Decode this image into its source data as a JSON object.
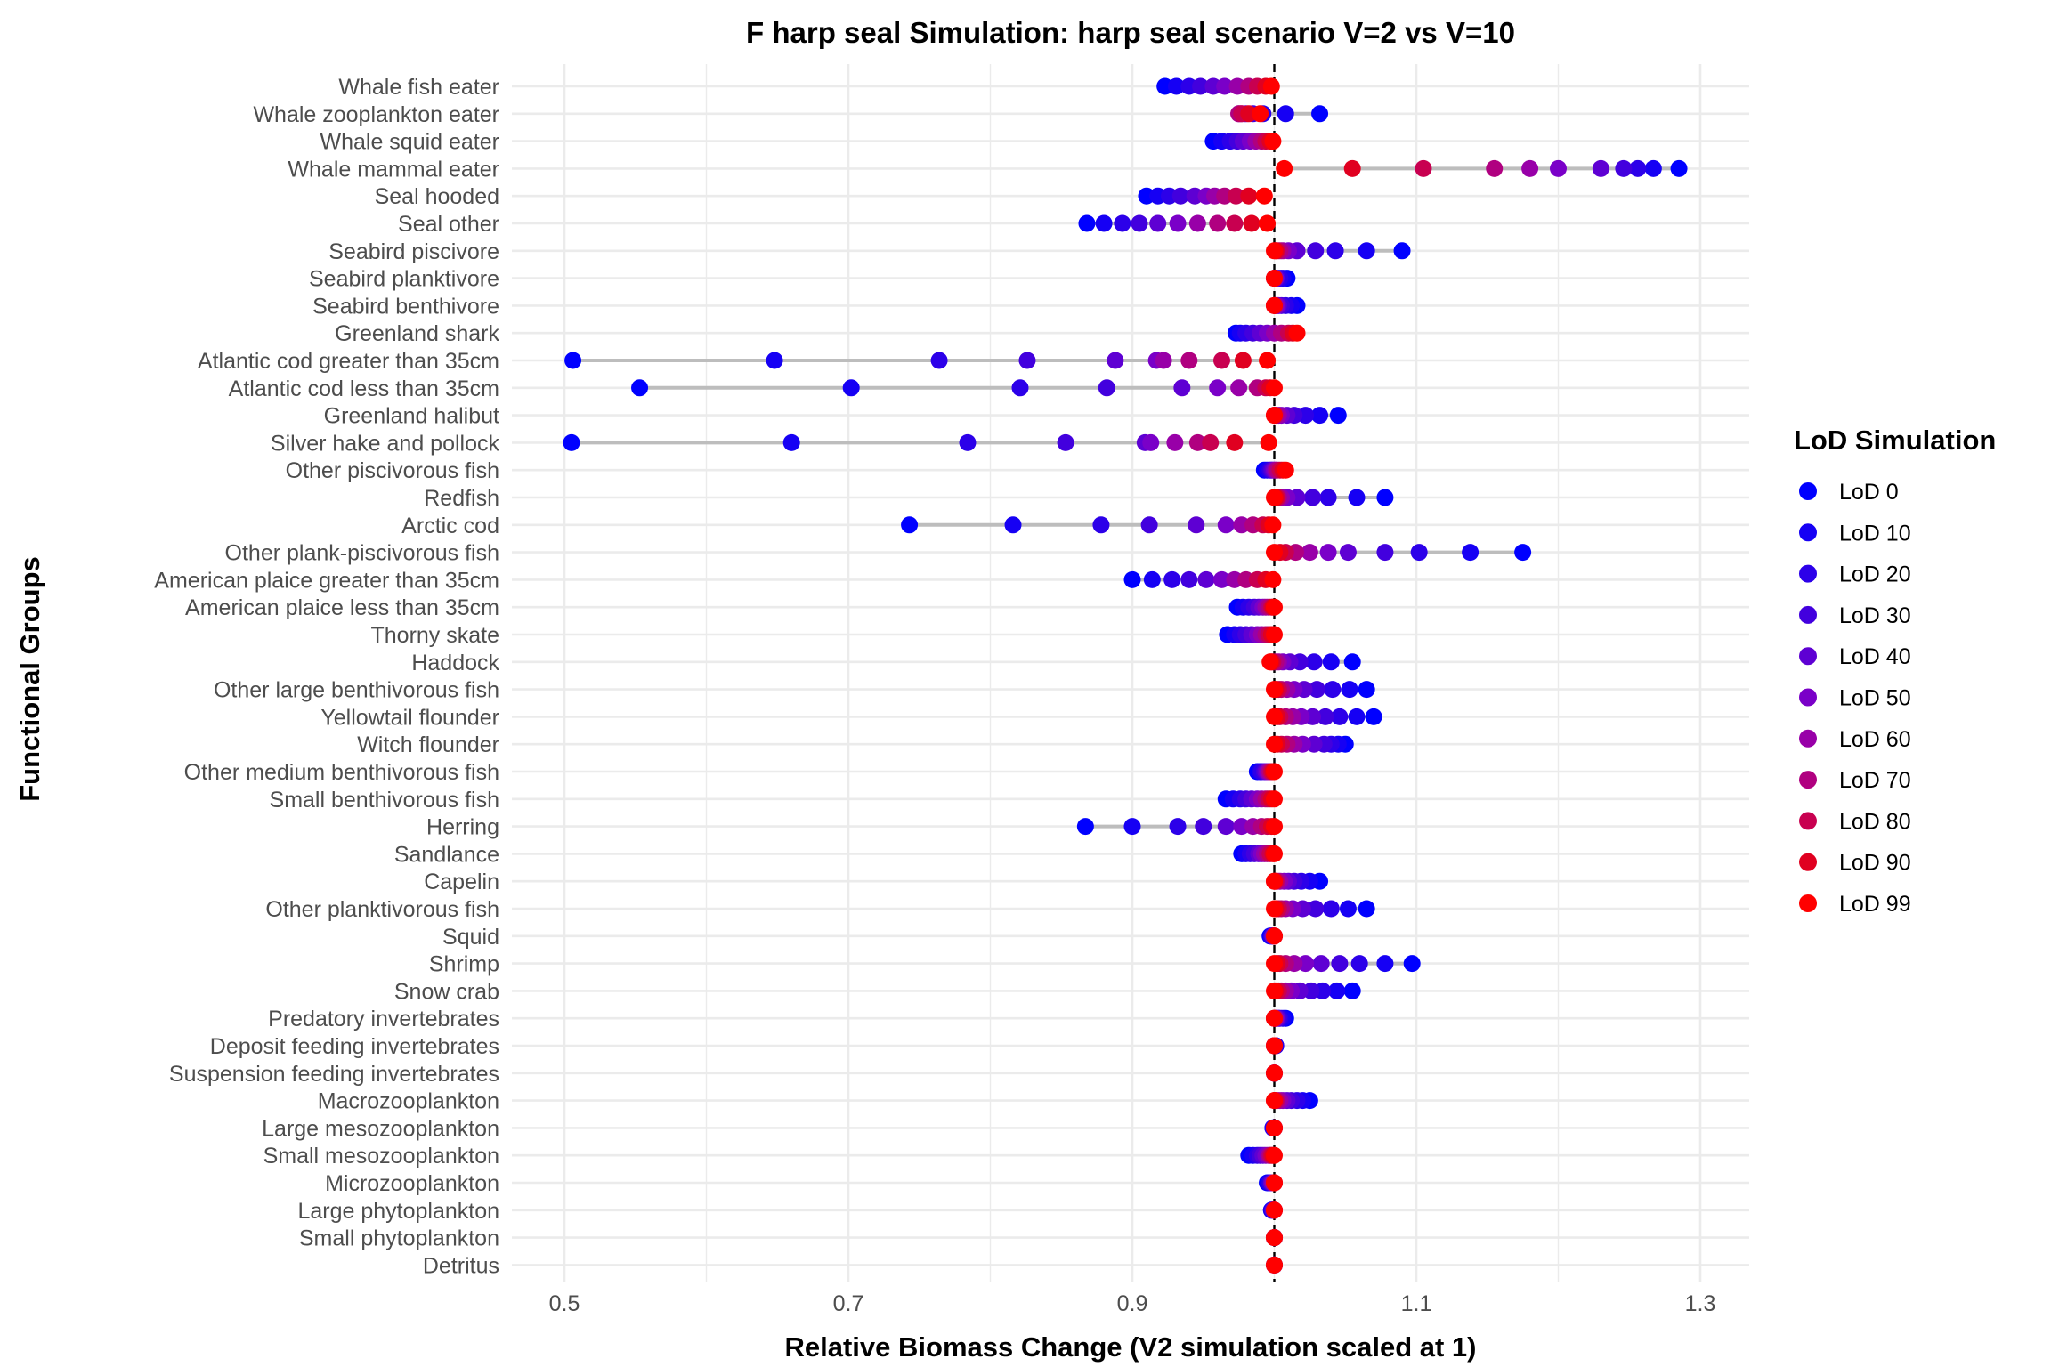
{
  "chart_data": {
    "type": "scatter",
    "title": "F harp seal Simulation: harp seal scenario V=2 vs V=10",
    "xlabel": "Relative Biomass Change (V2 simulation scaled at 1)",
    "ylabel": "Functional Groups",
    "xlim": [
      0.48,
      1.32
    ],
    "xticks": [
      0.5,
      0.7,
      0.9,
      1.1,
      1.3
    ],
    "xtick_labels": [
      "0.5",
      "0.7",
      "0.9",
      "1.1",
      "1.3"
    ],
    "reference_line_x": 1.0,
    "grid": true,
    "legend": {
      "title": "LoD Simulation",
      "position": "right",
      "entries": [
        "LoD 0",
        "LoD 10",
        "LoD 20",
        "LoD 30",
        "LoD 40",
        "LoD 50",
        "LoD 60",
        "LoD 70",
        "LoD 80",
        "LoD 90",
        "LoD 99"
      ],
      "colors": [
        "#0000ff",
        "#1600f4",
        "#2c00e9",
        "#4200de",
        "#5e00d3",
        "#7a00c8",
        "#9800a8",
        "#b00080",
        "#c80050",
        "#e00020",
        "#ff0000"
      ]
    },
    "groups": [
      {
        "name": "Whale fish eater",
        "values": [
          0.923,
          0.931,
          0.94,
          0.948,
          0.957,
          0.965,
          0.974,
          0.982,
          0.988,
          0.994,
          0.998
        ]
      },
      {
        "name": "Whale zooplankton eater",
        "values": [
          1.032,
          1.008,
          0.992,
          0.985,
          0.98,
          0.977,
          0.975,
          0.975,
          0.977,
          0.982,
          0.99
        ]
      },
      {
        "name": "Whale squid eater",
        "values": [
          0.957,
          0.963,
          0.969,
          0.974,
          0.978,
          0.983,
          0.987,
          0.991,
          0.994,
          0.997,
          0.999
        ]
      },
      {
        "name": "Whale mammal eater",
        "values": [
          1.285,
          1.267,
          1.256,
          1.246,
          1.23,
          1.2,
          1.18,
          1.155,
          1.105,
          1.055,
          1.007
        ]
      },
      {
        "name": "Seal hooded",
        "values": [
          0.91,
          0.918,
          0.926,
          0.934,
          0.944,
          0.952,
          0.958,
          0.965,
          0.973,
          0.982,
          0.993
        ]
      },
      {
        "name": "Seal other",
        "values": [
          0.868,
          0.88,
          0.893,
          0.905,
          0.918,
          0.932,
          0.946,
          0.96,
          0.972,
          0.984,
          0.995
        ]
      },
      {
        "name": "Seabird piscivore",
        "values": [
          1.09,
          1.065,
          1.043,
          1.029,
          1.016,
          1.01,
          1.006,
          1.004,
          1.002,
          1.001,
          1.0
        ]
      },
      {
        "name": "Seabird planktivore",
        "values": [
          1.009,
          1.006,
          1.004,
          1.002,
          1.001,
          1.001,
          1.0,
          1.0,
          1.0,
          1.0,
          1.0
        ]
      },
      {
        "name": "Seabird benthivore",
        "values": [
          1.016,
          1.012,
          1.008,
          1.005,
          1.003,
          1.002,
          1.001,
          1.0,
          1.0,
          1.0,
          1.0
        ]
      },
      {
        "name": "Greenland shark",
        "values": [
          0.973,
          0.976,
          0.98,
          0.985,
          0.99,
          0.995,
          1.0,
          1.005,
          1.01,
          1.013,
          1.016
        ]
      },
      {
        "name": "Atlantic cod greater than 35cm",
        "values": [
          0.506,
          0.648,
          0.764,
          0.826,
          0.888,
          0.917,
          0.922,
          0.94,
          0.963,
          0.978,
          0.995
        ]
      },
      {
        "name": "Atlantic cod less than 35cm",
        "values": [
          0.553,
          0.702,
          0.821,
          0.882,
          0.935,
          0.96,
          0.975,
          0.988,
          0.994,
          0.997,
          1.0
        ]
      },
      {
        "name": "Greenland halibut",
        "values": [
          1.045,
          1.032,
          1.022,
          1.014,
          1.009,
          1.005,
          1.003,
          1.001,
          1.0,
          1.0,
          1.0
        ]
      },
      {
        "name": "Silver hake and pollock",
        "values": [
          0.505,
          0.66,
          0.784,
          0.853,
          0.909,
          0.913,
          0.93,
          0.946,
          0.955,
          0.972,
          0.996
        ]
      },
      {
        "name": "Other piscivorous fish",
        "values": [
          0.993,
          0.995,
          0.997,
          0.998,
          0.999,
          1.0,
          1.001,
          1.002,
          1.004,
          1.006,
          1.008
        ]
      },
      {
        "name": "Redfish",
        "values": [
          1.078,
          1.058,
          1.038,
          1.027,
          1.016,
          1.009,
          1.005,
          1.003,
          1.002,
          1.001,
          1.0
        ]
      },
      {
        "name": "Arctic cod",
        "values": [
          0.743,
          0.816,
          0.878,
          0.912,
          0.945,
          0.966,
          0.977,
          0.985,
          0.992,
          0.996,
          0.999
        ]
      },
      {
        "name": "Other plank-piscivorous fish",
        "values": [
          1.175,
          1.138,
          1.102,
          1.078,
          1.052,
          1.038,
          1.025,
          1.015,
          1.008,
          1.004,
          1.0
        ]
      },
      {
        "name": "American plaice greater than 35cm",
        "values": [
          0.9,
          0.914,
          0.928,
          0.94,
          0.952,
          0.963,
          0.972,
          0.98,
          0.988,
          0.994,
          0.999
        ]
      },
      {
        "name": "American plaice less than 35cm",
        "values": [
          0.974,
          0.978,
          0.982,
          0.986,
          0.989,
          0.992,
          0.994,
          0.996,
          0.998,
          0.999,
          1.0
        ]
      },
      {
        "name": "Thorny skate",
        "values": [
          0.967,
          0.972,
          0.976,
          0.98,
          0.984,
          0.988,
          0.991,
          0.994,
          0.996,
          0.998,
          1.0
        ]
      },
      {
        "name": "Haddock",
        "values": [
          1.055,
          1.04,
          1.028,
          1.018,
          1.011,
          1.006,
          1.003,
          1.001,
          0.999,
          0.998,
          0.997
        ]
      },
      {
        "name": "Other large benthivorous fish",
        "values": [
          1.065,
          1.053,
          1.041,
          1.03,
          1.021,
          1.014,
          1.009,
          1.005,
          1.003,
          1.001,
          1.0
        ]
      },
      {
        "name": "Yellowtail flounder",
        "values": [
          1.07,
          1.058,
          1.046,
          1.036,
          1.027,
          1.019,
          1.013,
          1.008,
          1.004,
          1.002,
          1.0
        ]
      },
      {
        "name": "Witch flounder",
        "values": [
          1.05,
          1.045,
          1.04,
          1.035,
          1.028,
          1.02,
          1.014,
          1.009,
          1.005,
          1.002,
          1.0
        ]
      },
      {
        "name": "Other medium benthivorous fish",
        "values": [
          0.988,
          0.99,
          0.991,
          0.993,
          0.994,
          0.995,
          0.996,
          0.997,
          0.998,
          0.999,
          1.0
        ]
      },
      {
        "name": "Small benthivorous fish",
        "values": [
          0.966,
          0.971,
          0.976,
          0.98,
          0.984,
          0.988,
          0.991,
          0.994,
          0.996,
          0.998,
          1.0
        ]
      },
      {
        "name": "Herring",
        "values": [
          0.867,
          0.9,
          0.932,
          0.95,
          0.966,
          0.977,
          0.985,
          0.991,
          0.995,
          0.998,
          1.0
        ]
      },
      {
        "name": "Sandlance",
        "values": [
          0.977,
          0.98,
          0.983,
          0.986,
          0.989,
          0.991,
          0.993,
          0.995,
          0.997,
          0.999,
          1.0
        ]
      },
      {
        "name": "Capelin",
        "values": [
          1.032,
          1.025,
          1.019,
          1.014,
          1.01,
          1.007,
          1.004,
          1.002,
          1.001,
          1.0,
          1.0
        ]
      },
      {
        "name": "Other planktivorous fish",
        "values": [
          1.065,
          1.052,
          1.04,
          1.029,
          1.02,
          1.013,
          1.008,
          1.005,
          1.003,
          1.001,
          1.0
        ]
      },
      {
        "name": "Squid",
        "values": [
          0.997,
          0.998,
          0.998,
          0.999,
          0.999,
          0.999,
          1.0,
          1.0,
          1.0,
          1.0,
          1.0
        ]
      },
      {
        "name": "Shrimp",
        "values": [
          1.097,
          1.078,
          1.06,
          1.046,
          1.033,
          1.022,
          1.014,
          1.008,
          1.004,
          1.002,
          1.0
        ]
      },
      {
        "name": "Snow crab",
        "values": [
          1.055,
          1.044,
          1.034,
          1.026,
          1.018,
          1.012,
          1.008,
          1.005,
          1.003,
          1.001,
          1.0
        ]
      },
      {
        "name": "Predatory invertebrates",
        "values": [
          1.008,
          1.006,
          1.004,
          1.003,
          1.002,
          1.001,
          1.001,
          1.0,
          1.0,
          1.0,
          1.0
        ]
      },
      {
        "name": "Deposit feeding invertebrates",
        "values": [
          1.001,
          1.001,
          1.001,
          1.0,
          1.0,
          1.0,
          1.0,
          1.0,
          1.0,
          1.0,
          1.0
        ]
      },
      {
        "name": "Suspension feeding invertebrates",
        "values": [
          1.0,
          1.0,
          1.0,
          1.0,
          1.0,
          1.0,
          1.0,
          1.0,
          1.0,
          1.0,
          1.0
        ]
      },
      {
        "name": "Macrozooplankton",
        "values": [
          1.025,
          1.02,
          1.016,
          1.012,
          1.009,
          1.006,
          1.004,
          1.002,
          1.001,
          1.0,
          1.0
        ]
      },
      {
        "name": "Large mesozooplankton",
        "values": [
          0.999,
          0.999,
          0.999,
          1.0,
          1.0,
          1.0,
          1.0,
          1.0,
          1.0,
          1.0,
          1.0
        ]
      },
      {
        "name": "Small mesozooplankton",
        "values": [
          0.982,
          0.985,
          0.988,
          0.99,
          0.992,
          0.994,
          0.996,
          0.997,
          0.998,
          0.999,
          1.0
        ]
      },
      {
        "name": "Microzooplankton",
        "values": [
          0.995,
          0.996,
          0.997,
          0.998,
          0.998,
          0.999,
          0.999,
          1.0,
          1.0,
          1.0,
          1.0
        ]
      },
      {
        "name": "Large phytoplankton",
        "values": [
          0.998,
          0.998,
          0.999,
          0.999,
          0.999,
          1.0,
          1.0,
          1.0,
          1.0,
          1.0,
          1.0
        ]
      },
      {
        "name": "Small phytoplankton",
        "values": [
          1.0,
          1.0,
          1.0,
          1.0,
          1.0,
          1.0,
          1.0,
          1.0,
          1.0,
          1.0,
          1.0
        ]
      },
      {
        "name": "Detritus",
        "values": [
          1.0,
          1.0,
          1.0,
          1.0,
          1.0,
          1.0,
          1.0,
          1.0,
          1.0,
          1.0,
          1.0
        ]
      }
    ]
  }
}
